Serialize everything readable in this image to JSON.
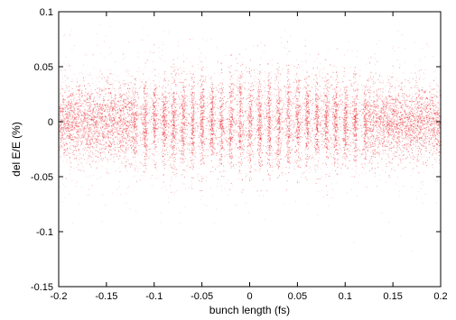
{
  "chart_data": {
    "type": "scatter",
    "title": "",
    "xlabel": "bunch length (fs)",
    "ylabel": "del E/E (%)",
    "xlim": [
      -0.2,
      0.2
    ],
    "ylim": [
      -0.15,
      0.1
    ],
    "x_ticks": [
      -0.2,
      -0.15,
      -0.1,
      -0.05,
      0,
      0.05,
      0.1,
      0.15,
      0.2
    ],
    "x_tick_labels": [
      "-0.2",
      "-0.15",
      "-0.1",
      "-0.05",
      "0",
      "0.05",
      "0.1",
      "0.15",
      "0.2"
    ],
    "y_ticks": [
      -0.15,
      -0.1,
      -0.05,
      0,
      0.05,
      0.1
    ],
    "y_tick_labels": [
      "-0.15",
      "-0.1",
      "-0.05",
      "0",
      "0.05",
      "0.1"
    ],
    "grid": false,
    "legend": "none",
    "point_color": "#e8232a",
    "series": [
      {
        "distribution": {
          "center_y": 0.0,
          "core_spread_y_at_x0": 0.045,
          "core_spread_y_at_edges": 0.03,
          "halo_spread_y": 0.06,
          "modulation_period_x": 0.01,
          "modulated_range_x": [
            -0.12,
            0.12
          ]
        }
      }
    ]
  }
}
